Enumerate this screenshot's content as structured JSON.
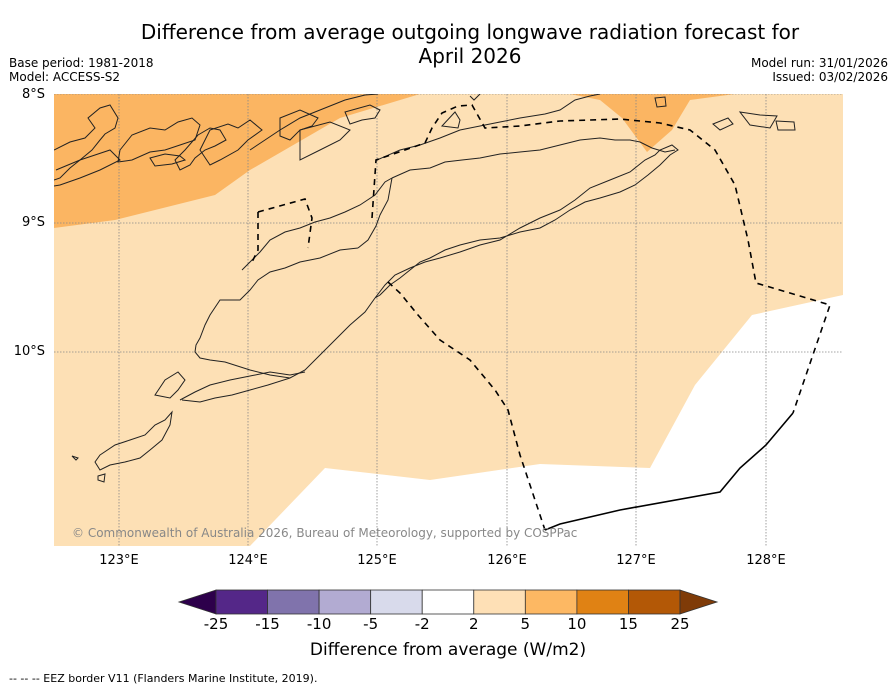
{
  "header": {
    "title_line1": "Difference from average outgoing longwave radiation forecast for",
    "title_line2": "April 2026",
    "base_period": "Base period: 1981-2018",
    "model": "Model: ACCESS-S2",
    "model_run": "Model run: 31/01/2026",
    "issued": "Issued: 03/02/2026"
  },
  "map": {
    "lat_labels": [
      "8°S",
      "9°S",
      "10°S"
    ],
    "lon_labels": [
      "123°E",
      "124°E",
      "125°E",
      "126°E",
      "127°E",
      "128°E"
    ],
    "extent": {
      "lon_min": 122.5,
      "lon_max": 128.6,
      "lat_max": -8.0,
      "lat_min": -11.5
    },
    "copyright": "© Commonwealth of Australia 2026, Bureau of Meteorology, supported by COSPPac",
    "fill_colors": {
      "ocean_2_to_5": "#fde0b5",
      "band_5_to_10": "#fbb562",
      "neutral": "#ffffff"
    }
  },
  "colorbar": {
    "title": "Difference from average (W/m2)",
    "tick_labels": [
      "-25",
      "-15",
      "-10",
      "-5",
      "-2",
      "2",
      "5",
      "10",
      "15",
      "25"
    ],
    "under_color": "#2d004b",
    "over_color": "#7f3b08",
    "bins": [
      {
        "range": "-25 to -15",
        "color": "#542788"
      },
      {
        "range": "-15 to -10",
        "color": "#8073ac"
      },
      {
        "range": "-10 to -5",
        "color": "#b2abd2"
      },
      {
        "range": "-5 to -2",
        "color": "#d8daeb"
      },
      {
        "range": "-2 to 2",
        "color": "#ffffff"
      },
      {
        "range": "2 to 5",
        "color": "#fee0b6"
      },
      {
        "range": "5 to 10",
        "color": "#fdb863"
      },
      {
        "range": "10 to 15",
        "color": "#e08214"
      },
      {
        "range": "15 to 25",
        "color": "#b35806"
      }
    ]
  },
  "footnote": "--  --  -- EEZ border V11 (Flanders Marine Institute, 2019)."
}
